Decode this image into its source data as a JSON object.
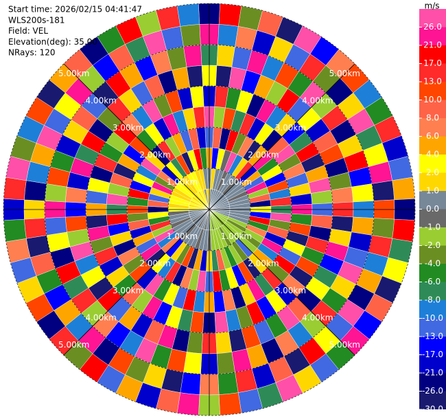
{
  "chart_data": {
    "type": "ppi",
    "annotations": [
      "Start time: 2026/02/15 04:41:47",
      "WLS200s-181",
      "Field: VEL",
      "Elevation(deg): 35.00",
      "NRays: 120"
    ],
    "rlim": [
      0,
      5
    ],
    "rticks": [
      {
        "value": 1,
        "label": "1.00km"
      },
      {
        "value": 2,
        "label": "2.00km"
      },
      {
        "value": 3,
        "label": "3.00km"
      },
      {
        "value": 4,
        "label": "4.00km"
      },
      {
        "value": 5,
        "label": "5.00km"
      }
    ],
    "colorbar": {
      "label": "m/s",
      "ticks": [
        {
          "value": -30,
          "label": "-30.0"
        },
        {
          "value": -26,
          "label": "-26.0"
        },
        {
          "value": -21,
          "label": "-21.0"
        },
        {
          "value": -17,
          "label": "-17.0"
        },
        {
          "value": -13,
          "label": "-13.0"
        },
        {
          "value": -10,
          "label": "-10.0"
        },
        {
          "value": -8,
          "label": "-8.0"
        },
        {
          "value": -6,
          "label": "-6.0"
        },
        {
          "value": -4,
          "label": "-4.0"
        },
        {
          "value": -2,
          "label": "-2.0"
        },
        {
          "value": -1,
          "label": "-1.0"
        },
        {
          "value": 0,
          "label": "0.0"
        },
        {
          "value": 1,
          "label": "1.0"
        },
        {
          "value": 2,
          "label": "2.0"
        },
        {
          "value": 4,
          "label": "4.0"
        },
        {
          "value": 6,
          "label": "6.0"
        },
        {
          "value": 8,
          "label": "8.0"
        },
        {
          "value": 10,
          "label": "10.0"
        },
        {
          "value": 13,
          "label": "13.0"
        },
        {
          "value": 17,
          "label": "17.0"
        },
        {
          "value": 21,
          "label": "21.0"
        },
        {
          "value": 26,
          "label": "26.0"
        }
      ],
      "colors": [
        "#191970",
        "#000080",
        "#0000cd",
        "#0000ff",
        "#4169e1",
        "#1e7fd8",
        "#2e8b57",
        "#228b22",
        "#6b8e23",
        "#9acd32",
        "#696969",
        "#778899",
        "#ffd700",
        "#ffff00",
        "#ffa500",
        "#ff7f50",
        "#ff6347",
        "#ff4500",
        "#ff2a2a",
        "#ff0000",
        "#ff1493",
        "#ff4fa8"
      ]
    },
    "values": [
      [
        1,
        0,
        5,
        -12,
        28,
        -19,
        3,
        -7,
        23,
        -24
      ],
      [
        0,
        1,
        -15,
        9,
        -2,
        15,
        -28,
        1,
        -9,
        19
      ],
      [
        0,
        0,
        3,
        -24,
        11,
        -5,
        28,
        -12,
        7,
        -3
      ],
      [
        0,
        0,
        -1,
        19,
        -7,
        3,
        -15,
        23,
        -19,
        9
      ],
      [
        0,
        -1,
        28,
        -3,
        15,
        -24,
        5,
        -9,
        1,
        -28
      ],
      [
        0,
        0,
        -9,
        7,
        -19,
        23,
        -2,
        11,
        -12,
        28
      ],
      [
        0,
        0,
        1,
        -28,
        3,
        -9,
        19,
        -5,
        15,
        -15
      ],
      [
        0,
        -1,
        15,
        5,
        -24,
        1,
        -12,
        28,
        -3,
        7
      ],
      [
        0,
        0,
        -19,
        23,
        9,
        -15,
        3,
        -2,
        -24,
        11
      ],
      [
        0,
        0,
        5,
        -5,
        28,
        -7,
        -19,
        15,
        1,
        -9
      ],
      [
        0,
        0,
        -12,
        3,
        -3,
        19,
        9,
        -24,
        28,
        -5
      ],
      [
        0,
        -1,
        23,
        -15,
        7,
        -28,
        11,
        1,
        -7,
        15
      ],
      [
        0,
        0,
        -2,
        11,
        -12,
        5,
        -24,
        19,
        3,
        -19
      ],
      [
        0,
        0,
        9,
        -9,
        1,
        28,
        -3,
        -15,
        23,
        -12
      ],
      [
        0,
        0,
        -24,
        15,
        -19,
        -2,
        7,
        3,
        -28,
        5
      ],
      [
        0,
        0,
        3,
        -7,
        23,
        -12,
        15,
        -9,
        11,
        -24
      ],
      [
        0,
        0,
        -15,
        28,
        -5,
        9,
        -28,
        5,
        -3,
        19
      ],
      [
        0,
        0,
        19,
        -3,
        11,
        -24,
        1,
        -19,
        15,
        -7
      ],
      [
        0,
        0,
        -5,
        9,
        -28,
        15,
        23,
        -12,
        -9,
        3
      ],
      [
        -2,
        -2,
        7,
        -19,
        3,
        -5,
        -15,
        28,
        5,
        -28
      ],
      [
        -2,
        -3,
        -2,
        23,
        -12,
        11,
        -7,
        1,
        -24,
        9
      ],
      [
        -2,
        -2,
        -3,
        -9,
        19,
        -28,
        3,
        -5,
        28,
        -15
      ],
      [
        -2,
        -2,
        -2,
        5,
        -3,
        7,
        -24,
        15,
        -12,
        23
      ],
      [
        -3,
        -2,
        -12,
        1,
        15,
        -19,
        9,
        -2,
        3,
        -5
      ],
      [
        -2,
        -2,
        -3,
        -28,
        -7,
        3,
        28,
        -9,
        19,
        -12
      ],
      [
        -2,
        -3,
        -2,
        11,
        23,
        -15,
        -5,
        7,
        -28,
        1
      ],
      [
        -2,
        -2,
        -5,
        -15,
        1,
        19,
        -12,
        -24,
        9,
        28
      ],
      [
        -2,
        -2,
        -2,
        3,
        -24,
        -3,
        11,
        5,
        -19,
        -7
      ],
      [
        -3,
        -2,
        9,
        -5,
        7,
        -9,
        -28,
        23,
        15,
        -12
      ],
      [
        -2,
        -2,
        -7,
        19,
        -15,
        28,
        1,
        -3,
        -5,
        11
      ],
      [
        0,
        -1,
        1,
        -12,
        5,
        -24,
        15,
        -19,
        7,
        -2
      ],
      [
        0,
        0,
        -19,
        28,
        -9,
        11,
        -3,
        3,
        -15,
        23
      ],
      [
        -1,
        0,
        5,
        -2,
        19,
        -7,
        -24,
        11,
        -28,
        9
      ],
      [
        0,
        -1,
        -28,
        7,
        -12,
        3,
        23,
        -5,
        1,
        -19
      ],
      [
        0,
        0,
        11,
        -24,
        3,
        -15,
        9,
        28,
        -3,
        5
      ],
      [
        -1,
        0,
        -3,
        15,
        -5,
        23,
        -19,
        -9,
        11,
        -12
      ],
      [
        0,
        0,
        1,
        -9,
        28,
        -2,
        5,
        -15,
        -24,
        19
      ],
      [
        0,
        -1,
        -15,
        3,
        -19,
        9,
        -12,
        7,
        23,
        -3
      ],
      [
        0,
        0,
        7,
        -28,
        11,
        -5,
        19,
        -2,
        -9,
        15
      ],
      [
        -1,
        0,
        -9,
        23,
        -3,
        1,
        -28,
        15,
        5,
        -24
      ],
      [
        0,
        0,
        28,
        -12,
        7,
        -19,
        3,
        -7,
        -15,
        11
      ],
      [
        0,
        -1,
        -2,
        5,
        -24,
        15,
        -9,
        19,
        -5,
        1
      ],
      [
        0,
        0,
        15,
        -19,
        1,
        -3,
        28,
        -24,
        9,
        -12
      ],
      [
        0,
        0,
        -5,
        9,
        -15,
        23,
        -2,
        3,
        -28,
        7
      ],
      [
        0,
        -1,
        3,
        -3,
        19,
        -28,
        11,
        -12,
        15,
        -5
      ],
      [
        1,
        3,
        -24,
        11,
        -7,
        5,
        -15,
        23,
        1,
        -19
      ],
      [
        3,
        1,
        9,
        -5,
        28,
        -12,
        7,
        -2,
        -24,
        15
      ],
      [
        1,
        3,
        -12,
        19,
        -2,
        3,
        -19,
        11,
        -9,
        28
      ],
      [
        3,
        3,
        1,
        -15,
        9,
        -24,
        23,
        -5,
        5,
        -3
      ],
      [
        1,
        1,
        23,
        3,
        -28,
        15,
        -7,
        -19,
        28,
        -9
      ],
      [
        3,
        1,
        -3,
        -9,
        5,
        -5,
        19,
        1,
        -12,
        11
      ],
      [
        1,
        3,
        7,
        28,
        -15,
        -2,
        -24,
        9,
        3,
        -28
      ],
      [
        3,
        3,
        -19,
        1,
        11,
        19,
        -3,
        -12,
        23,
        5
      ],
      [
        1,
        1,
        3,
        -24,
        -5,
        7,
        15,
        -28,
        -2,
        9
      ],
      [
        3,
        1,
        -7,
        15,
        3,
        -9,
        1,
        19,
        -15,
        -24
      ],
      [
        1,
        3,
        11,
        -2,
        -19,
        28,
        -12,
        5,
        9,
        -5
      ],
      [
        3,
        3,
        -28,
        5,
        23,
        -3,
        9,
        -15,
        -7,
        19
      ],
      [
        1,
        1,
        3,
        -12,
        -9,
        11,
        -24,
        7,
        28,
        -2
      ],
      [
        0,
        1,
        19,
        9,
        1,
        -19,
        5,
        -3,
        -12,
        15
      ],
      [
        1,
        0,
        -5,
        -19,
        15,
        3,
        -28,
        23,
        -3,
        -9
      ]
    ]
  }
}
